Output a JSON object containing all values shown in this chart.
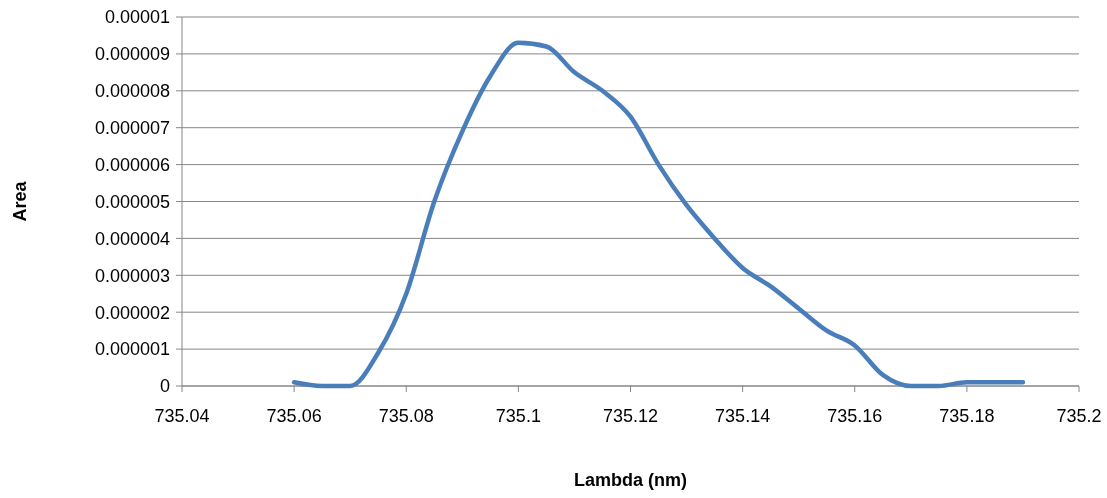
{
  "chart_data": {
    "type": "line",
    "xlabel": "Lambda (nm)",
    "ylabel": "Area",
    "series": [
      {
        "color": "#4a7ebb",
        "x": [
          735.06,
          735.065,
          735.07,
          735.075,
          735.08,
          735.085,
          735.09,
          735.095,
          735.1,
          735.105,
          735.11,
          735.115,
          735.12,
          735.125,
          735.13,
          735.135,
          735.14,
          735.145,
          735.15,
          735.155,
          735.16,
          735.165,
          735.17,
          735.175,
          735.18,
          735.19
        ],
        "values": [
          1e-07,
          0,
          0,
          9e-07,
          2.5e-06,
          5e-06,
          6.9e-06,
          8.4e-06,
          9.3e-06,
          9.2e-06,
          8.5e-06,
          8e-06,
          7.3e-06,
          6e-06,
          4.9e-06,
          4e-06,
          3.2e-06,
          2.7e-06,
          2.1e-06,
          1.5e-06,
          1.1e-06,
          3e-07,
          0,
          0,
          1e-07,
          1e-07
        ]
      }
    ],
    "xlim": [
      735.04,
      735.2
    ],
    "xticks": [
      {
        "value": 735.04,
        "label": "735.04"
      },
      {
        "value": 735.06,
        "label": "735.06"
      },
      {
        "value": 735.08,
        "label": "735.08"
      },
      {
        "value": 735.1,
        "label": "735.1"
      },
      {
        "value": 735.12,
        "label": "735.12"
      },
      {
        "value": 735.14,
        "label": "735.14"
      },
      {
        "value": 735.16,
        "label": "735.16"
      },
      {
        "value": 735.18,
        "label": "735.18"
      },
      {
        "value": 735.2,
        "label": "735.2"
      }
    ],
    "ylim": [
      0,
      1e-05
    ],
    "yticks": [
      0,
      {
        "value": 1e-06,
        "label": "0.000001"
      },
      {
        "value": 2e-06,
        "label": "0.000002"
      },
      {
        "value": 3e-06,
        "label": "0.000003"
      },
      {
        "value": 4e-06,
        "label": "0.000004"
      },
      {
        "value": 5e-06,
        "label": "0.000005"
      },
      {
        "value": 6e-06,
        "label": "0.000006"
      },
      {
        "value": 7e-06,
        "label": "0.000007"
      },
      {
        "value": 8e-06,
        "label": "0.000008"
      },
      {
        "value": 9e-06,
        "label": "0.000009"
      },
      {
        "value": 1e-05,
        "label": "0.00001"
      }
    ],
    "grid": "y",
    "marker": "none",
    "line_style": "solid"
  }
}
